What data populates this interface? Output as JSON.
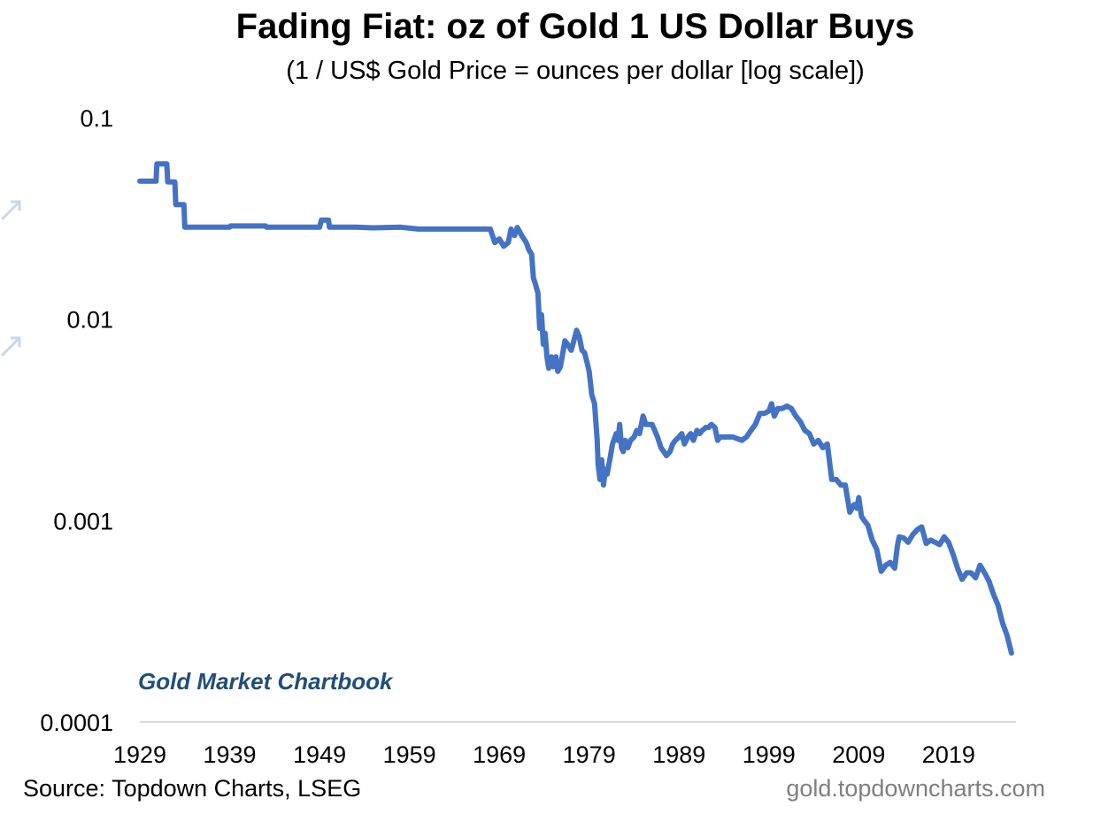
{
  "title": "Fading Fiat: oz of Gold 1 US Dollar Buys",
  "subtitle": "(1 / US$ Gold Price = ounces per dollar [log scale])",
  "source": "Source: Topdown Charts, LSEG",
  "website": "gold.topdowncharts.com",
  "brand": "Gold Market Chartbook",
  "colors": {
    "line": "#4472c4",
    "brand": "#1f4e79",
    "axis": "#d9d9d9",
    "website": "#7f7f7f"
  },
  "chart_data": {
    "type": "line",
    "title": "Fading Fiat: oz of Gold 1 US Dollar Buys",
    "subtitle": "(1 / US$ Gold Price = ounces per dollar [log scale])",
    "y_scale": "log",
    "ylim": [
      0.0001,
      0.1
    ],
    "xlim": [
      1929,
      2026.5
    ],
    "y_ticks": [
      "0.1",
      "0.01",
      "0.001",
      "0.0001"
    ],
    "x_ticks": [
      "1929",
      "1939",
      "1949",
      "1959",
      "1969",
      "1979",
      "1989",
      "1999",
      "2009",
      "2019"
    ],
    "grid": false,
    "legend": "none",
    "series": [
      {
        "points": [
          [
            1929.0,
            0.0484
          ],
          [
            1930.8,
            0.0484
          ],
          [
            1930.9,
            0.059
          ],
          [
            1932.0,
            0.059
          ],
          [
            1932.1,
            0.048
          ],
          [
            1932.9,
            0.048
          ],
          [
            1933.0,
            0.037
          ],
          [
            1933.9,
            0.037
          ],
          [
            1934.0,
            0.0286
          ],
          [
            1939.0,
            0.0286
          ],
          [
            1939.1,
            0.029
          ],
          [
            1943.0,
            0.029
          ],
          [
            1943.1,
            0.0286
          ],
          [
            1949.0,
            0.0286
          ],
          [
            1949.2,
            0.031
          ],
          [
            1950.0,
            0.031
          ],
          [
            1950.1,
            0.0286
          ],
          [
            1953.0,
            0.0286
          ],
          [
            1955.0,
            0.0284
          ],
          [
            1958.0,
            0.0286
          ],
          [
            1960.0,
            0.028
          ],
          [
            1967.0,
            0.028
          ],
          [
            1968.0,
            0.028
          ],
          [
            1968.5,
            0.024
          ],
          [
            1969.0,
            0.025
          ],
          [
            1969.5,
            0.023
          ],
          [
            1970.0,
            0.024
          ],
          [
            1970.3,
            0.028
          ],
          [
            1970.7,
            0.026
          ],
          [
            1971.0,
            0.0285
          ],
          [
            1971.5,
            0.026
          ],
          [
            1972.0,
            0.024
          ],
          [
            1972.3,
            0.022
          ],
          [
            1972.6,
            0.021
          ],
          [
            1972.8,
            0.016
          ],
          [
            1973.0,
            0.015
          ],
          [
            1973.3,
            0.0135
          ],
          [
            1973.5,
            0.009
          ],
          [
            1973.7,
            0.0105
          ],
          [
            1973.9,
            0.0075
          ],
          [
            1974.1,
            0.0085
          ],
          [
            1974.3,
            0.0065
          ],
          [
            1974.5,
            0.0057
          ],
          [
            1974.8,
            0.0065
          ],
          [
            1975.0,
            0.0058
          ],
          [
            1975.3,
            0.0065
          ],
          [
            1975.5,
            0.0055
          ],
          [
            1975.8,
            0.0058
          ],
          [
            1976.0,
            0.0065
          ],
          [
            1976.3,
            0.0078
          ],
          [
            1976.6,
            0.0075
          ],
          [
            1977.0,
            0.007
          ],
          [
            1977.3,
            0.0078
          ],
          [
            1977.6,
            0.0088
          ],
          [
            1977.9,
            0.0082
          ],
          [
            1978.2,
            0.007
          ],
          [
            1978.5,
            0.0068
          ],
          [
            1978.8,
            0.006
          ],
          [
            1979.0,
            0.0055
          ],
          [
            1979.3,
            0.0042
          ],
          [
            1979.6,
            0.0038
          ],
          [
            1979.9,
            0.0025
          ],
          [
            1980.0,
            0.0019
          ],
          [
            1980.2,
            0.0016
          ],
          [
            1980.4,
            0.002
          ],
          [
            1980.6,
            0.0015
          ],
          [
            1980.8,
            0.0018
          ],
          [
            1981.0,
            0.0017
          ],
          [
            1981.3,
            0.002
          ],
          [
            1981.6,
            0.0024
          ],
          [
            1982.0,
            0.0027
          ],
          [
            1982.2,
            0.0025
          ],
          [
            1982.4,
            0.003
          ],
          [
            1982.6,
            0.0023
          ],
          [
            1982.8,
            0.0022
          ],
          [
            1983.0,
            0.0025
          ],
          [
            1983.3,
            0.0023
          ],
          [
            1983.6,
            0.0025
          ],
          [
            1984.0,
            0.0026
          ],
          [
            1984.3,
            0.0028
          ],
          [
            1984.6,
            0.0027
          ],
          [
            1985.0,
            0.0033
          ],
          [
            1985.3,
            0.003
          ],
          [
            1985.6,
            0.003
          ],
          [
            1986.0,
            0.003
          ],
          [
            1986.3,
            0.0028
          ],
          [
            1986.6,
            0.0026
          ],
          [
            1987.0,
            0.0023
          ],
          [
            1987.3,
            0.0022
          ],
          [
            1987.6,
            0.0021
          ],
          [
            1988.0,
            0.0022
          ],
          [
            1988.3,
            0.0024
          ],
          [
            1988.6,
            0.0025
          ],
          [
            1989.0,
            0.0026
          ],
          [
            1989.3,
            0.0027
          ],
          [
            1989.6,
            0.0024
          ],
          [
            1990.0,
            0.0026
          ],
          [
            1990.3,
            0.0027
          ],
          [
            1990.6,
            0.0025
          ],
          [
            1991.0,
            0.0028
          ],
          [
            1991.3,
            0.0027
          ],
          [
            1991.6,
            0.0028
          ],
          [
            1992.0,
            0.0029
          ],
          [
            1992.3,
            0.0029
          ],
          [
            1992.6,
            0.003
          ],
          [
            1993.0,
            0.0029
          ],
          [
            1993.3,
            0.0025
          ],
          [
            1993.6,
            0.0026
          ],
          [
            1994.0,
            0.0026
          ],
          [
            1995.0,
            0.0026
          ],
          [
            1996.0,
            0.0025
          ],
          [
            1996.5,
            0.0026
          ],
          [
            1997.0,
            0.0028
          ],
          [
            1997.5,
            0.003
          ],
          [
            1998.0,
            0.0034
          ],
          [
            1998.5,
            0.0034
          ],
          [
            1999.0,
            0.0035
          ],
          [
            1999.3,
            0.0038
          ],
          [
            1999.6,
            0.0033
          ],
          [
            2000.0,
            0.0036
          ],
          [
            2000.5,
            0.0036
          ],
          [
            2001.0,
            0.0037
          ],
          [
            2001.5,
            0.0036
          ],
          [
            2002.0,
            0.0033
          ],
          [
            2002.5,
            0.0031
          ],
          [
            2003.0,
            0.0028
          ],
          [
            2003.5,
            0.0027
          ],
          [
            2004.0,
            0.0024
          ],
          [
            2004.5,
            0.0025
          ],
          [
            2005.0,
            0.0023
          ],
          [
            2005.5,
            0.0024
          ],
          [
            2006.0,
            0.0016
          ],
          [
            2006.5,
            0.0016
          ],
          [
            2007.0,
            0.0015
          ],
          [
            2007.5,
            0.0015
          ],
          [
            2008.0,
            0.0011
          ],
          [
            2008.5,
            0.0012
          ],
          [
            2008.8,
            0.00115
          ],
          [
            2009.0,
            0.0013
          ],
          [
            2009.3,
            0.00105
          ],
          [
            2009.6,
            0.001
          ],
          [
            2010.0,
            0.00095
          ],
          [
            2010.5,
            0.0008
          ],
          [
            2011.0,
            0.00072
          ],
          [
            2011.5,
            0.00056
          ],
          [
            2012.0,
            0.0006
          ],
          [
            2012.5,
            0.00062
          ],
          [
            2013.0,
            0.00058
          ],
          [
            2013.3,
            0.00075
          ],
          [
            2013.5,
            0.00083
          ],
          [
            2014.0,
            0.00082
          ],
          [
            2014.5,
            0.00078
          ],
          [
            2015.0,
            0.00085
          ],
          [
            2015.5,
            0.0009
          ],
          [
            2016.0,
            0.00093
          ],
          [
            2016.5,
            0.00077
          ],
          [
            2017.0,
            0.0008
          ],
          [
            2017.5,
            0.00078
          ],
          [
            2018.0,
            0.00076
          ],
          [
            2018.5,
            0.00083
          ],
          [
            2019.0,
            0.00078
          ],
          [
            2019.5,
            0.00068
          ],
          [
            2020.0,
            0.00058
          ],
          [
            2020.5,
            0.00051
          ],
          [
            2021.0,
            0.00055
          ],
          [
            2021.5,
            0.00055
          ],
          [
            2022.0,
            0.00052
          ],
          [
            2022.5,
            0.0006
          ],
          [
            2023.0,
            0.00055
          ],
          [
            2023.5,
            0.0005
          ],
          [
            2024.0,
            0.00043
          ],
          [
            2024.5,
            0.00038
          ],
          [
            2025.0,
            0.00031
          ],
          [
            2025.5,
            0.00027
          ],
          [
            2026.0,
            0.00022
          ]
        ]
      }
    ]
  }
}
